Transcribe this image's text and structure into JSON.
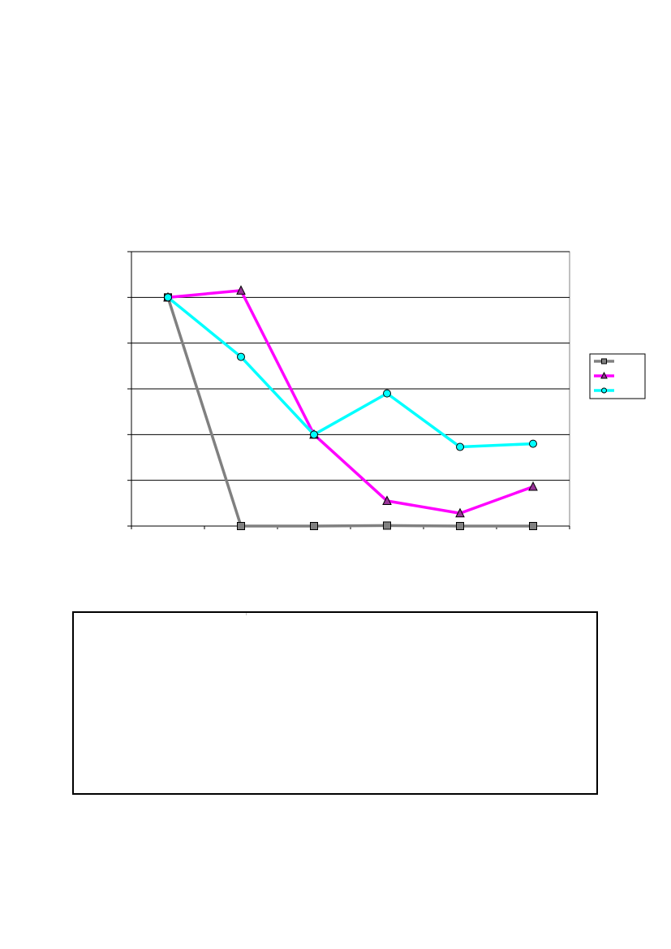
{
  "chart_data": {
    "type": "line",
    "title": "",
    "xlabel": "",
    "ylabel": "",
    "x": [
      1,
      2,
      3,
      4,
      5,
      6
    ],
    "xlim": [
      0.5,
      6.5
    ],
    "ylim": [
      0,
      6
    ],
    "y_gridlines": [
      1,
      2,
      3,
      4,
      5,
      6
    ],
    "grid": true,
    "legend_position": "right",
    "series": [
      {
        "marker": "square",
        "color": "#808080",
        "marker_fill": "#808080",
        "values": [
          5,
          0,
          0,
          0.01,
          0,
          0
        ]
      },
      {
        "marker": "triangle",
        "color": "#ff00ff",
        "marker_fill": "#993399",
        "values": [
          5,
          5.15,
          2,
          0.55,
          0.28,
          0.86
        ]
      },
      {
        "marker": "circle",
        "color": "#00ffff",
        "marker_fill": "#00ffff",
        "values": [
          5,
          3.7,
          2,
          2.9,
          1.73,
          1.8
        ]
      }
    ]
  }
}
